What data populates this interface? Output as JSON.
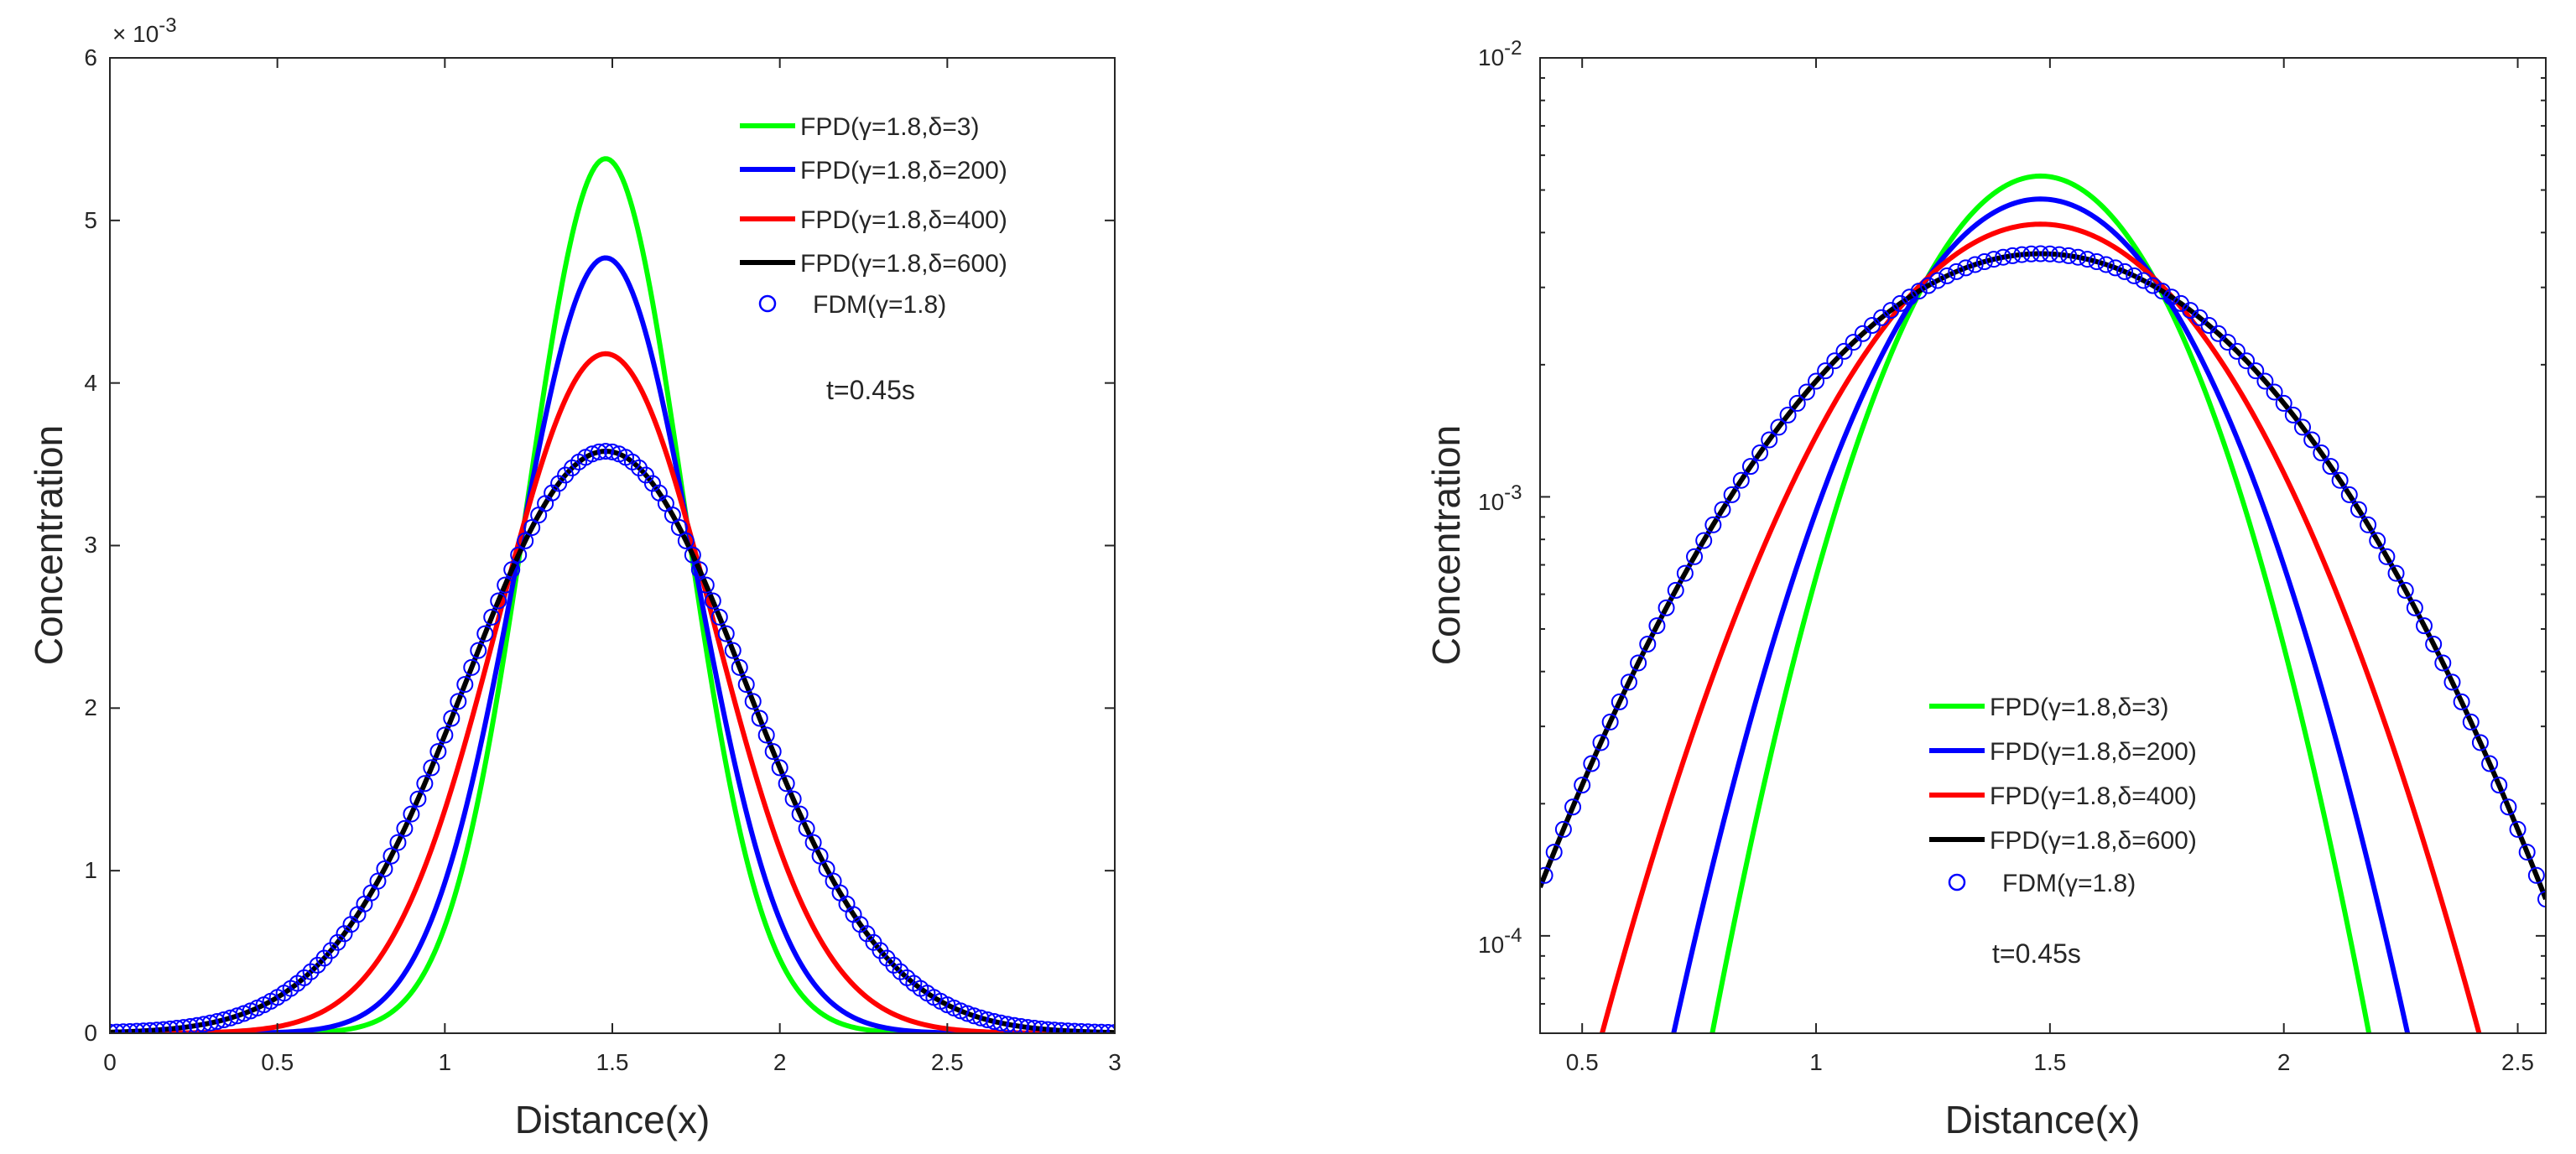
{
  "chart_data": [
    {
      "type": "line",
      "yscale": "linear",
      "xlabel": "Distance(x)",
      "ylabel": "Concentration",
      "xlim": [
        0,
        3
      ],
      "ylim": [
        0,
        0.006
      ],
      "xticks": [
        "0",
        "0.5",
        "1",
        "1.5",
        "2",
        "2.5",
        "3"
      ],
      "yticks": [
        "0",
        "1",
        "2",
        "3",
        "4",
        "5",
        "6"
      ],
      "y_multiplier_base": "× 10",
      "y_multiplier_exp": "-3",
      "annotation": "t=0.45s",
      "legend_position": "top-right",
      "series": [
        {
          "name": "FPD(γ=1.8,δ=3)",
          "color": "#00ff00",
          "style": "line",
          "peak_x": 1.48,
          "peak": 0.00538,
          "spread": 0.331
        },
        {
          "name": "FPD(γ=1.8,δ=200)",
          "color": "#0000ff",
          "style": "line",
          "peak_x": 1.48,
          "peak": 0.00477,
          "spread": 0.375
        },
        {
          "name": "FPD(γ=1.8,δ=400)",
          "color": "#ff0000",
          "style": "line",
          "peak_x": 1.48,
          "peak": 0.00418,
          "spread": 0.455
        },
        {
          "name": "FPD(γ=1.8,δ=600)",
          "color": "#000000",
          "style": "line",
          "peak_x": 1.48,
          "peak": 0.00358,
          "spread": 0.587
        },
        {
          "name": "FDM(γ=1.8)",
          "color": "#0000ff",
          "style": "markers",
          "peak_x": 1.48,
          "peak": 0.00358,
          "spread": 0.587
        }
      ]
    },
    {
      "type": "line",
      "yscale": "log",
      "xlabel": "Distance(x)",
      "ylabel": "Concentration",
      "xlim": [
        0.41,
        2.56
      ],
      "ylim": [
        6e-05,
        0.01
      ],
      "xticks": [
        "0.5",
        "1",
        "1.5",
        "2",
        "2.5"
      ],
      "yticks": [
        {
          "base": "10",
          "exp": "-2"
        },
        {
          "base": "10",
          "exp": "-3"
        },
        {
          "base": "10",
          "exp": "-4"
        }
      ],
      "annotation": "t=0.45s",
      "legend_position": "bottom-center",
      "series": [
        {
          "name": "FPD(γ=1.8,δ=3)",
          "color": "#00ff00",
          "style": "line",
          "peak_x": 1.48,
          "peak": 0.00538,
          "spread": 0.331
        },
        {
          "name": "FPD(γ=1.8,δ=200)",
          "color": "#0000ff",
          "style": "line",
          "peak_x": 1.48,
          "peak": 0.00477,
          "spread": 0.375
        },
        {
          "name": "FPD(γ=1.8,δ=400)",
          "color": "#ff0000",
          "style": "line",
          "peak_x": 1.48,
          "peak": 0.00418,
          "spread": 0.455
        },
        {
          "name": "FPD(γ=1.8,δ=600)",
          "color": "#000000",
          "style": "line",
          "peak_x": 1.48,
          "peak": 0.00358,
          "spread": 0.587
        },
        {
          "name": "FDM(γ=1.8)",
          "color": "#0000ff",
          "style": "markers",
          "peak_x": 1.48,
          "peak": 0.00358,
          "spread": 0.587
        }
      ]
    }
  ]
}
